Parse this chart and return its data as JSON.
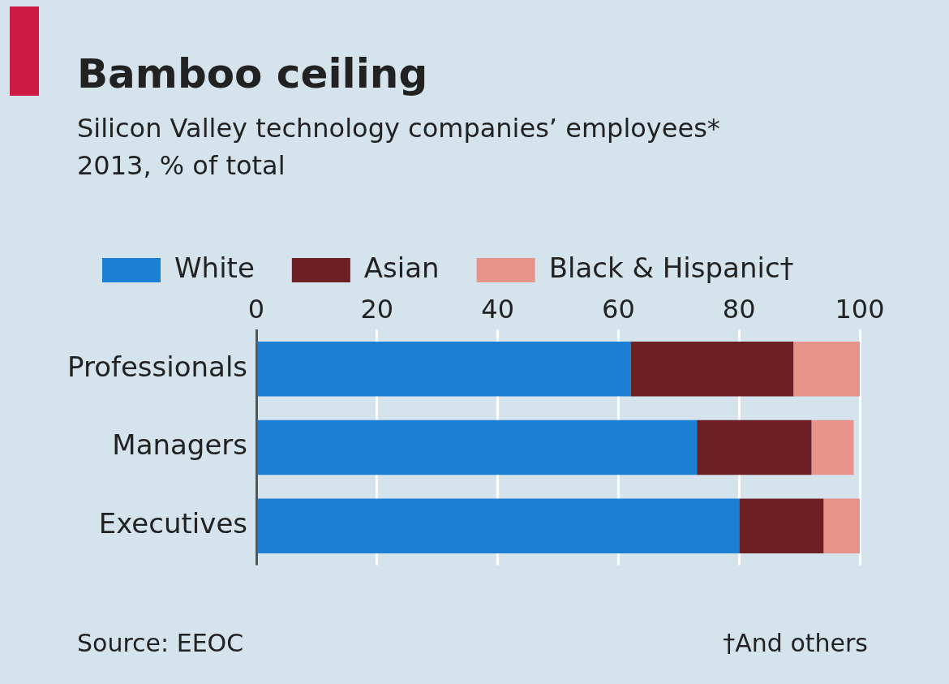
{
  "chart_data": {
    "type": "bar",
    "orientation": "horizontal",
    "stacked": true,
    "title": "Bamboo ceiling",
    "subtitle": "Silicon Valley technology companies’ employees*\n2013, % of total",
    "categories": [
      "Professionals",
      "Managers",
      "Executives"
    ],
    "series": [
      {
        "name": "White",
        "color": "#1b7fd4",
        "values": [
          62,
          73,
          80
        ]
      },
      {
        "name": "Asian",
        "color": "#6e1f24",
        "values": [
          27,
          19,
          14
        ]
      },
      {
        "name": "Black & Hispanic†",
        "color": "#e8928c",
        "values": [
          11,
          7,
          6
        ]
      }
    ],
    "xlim": [
      0,
      100
    ],
    "xticks": [
      0,
      20,
      40,
      60,
      80,
      100
    ],
    "grid": "x",
    "legend": "top left",
    "annotations": [
      "Source: EEOC",
      "†And others"
    ]
  }
}
